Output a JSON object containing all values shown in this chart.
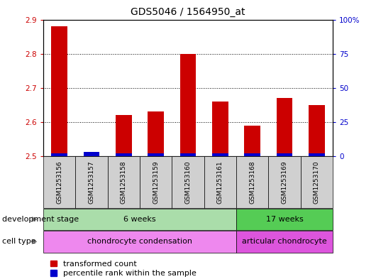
{
  "title": "GDS5046 / 1564950_at",
  "samples": [
    "GSM1253156",
    "GSM1253157",
    "GSM1253158",
    "GSM1253159",
    "GSM1253160",
    "GSM1253161",
    "GSM1253168",
    "GSM1253169",
    "GSM1253170"
  ],
  "transformed_count": [
    2.88,
    2.505,
    2.62,
    2.63,
    2.8,
    2.66,
    2.59,
    2.67,
    2.65
  ],
  "percentile_rank": [
    2,
    3,
    2,
    2,
    2,
    2,
    2,
    2,
    2
  ],
  "ylim_left": [
    2.5,
    2.9
  ],
  "ylim_right": [
    0,
    100
  ],
  "yticks_left": [
    2.5,
    2.6,
    2.7,
    2.8,
    2.9
  ],
  "yticks_right": [
    0,
    25,
    50,
    75,
    100
  ],
  "ytick_labels_right": [
    "0",
    "25",
    "50",
    "75",
    "100%"
  ],
  "bar_color_red": "#cc0000",
  "bar_color_blue": "#0000cc",
  "background_color": "#ffffff",
  "dev_stage_groups": [
    {
      "label": "6 weeks",
      "start": 0,
      "end": 6,
      "color": "#aaddaa"
    },
    {
      "label": "17 weeks",
      "start": 6,
      "end": 9,
      "color": "#55cc55"
    }
  ],
  "cell_type_groups": [
    {
      "label": "chondrocyte condensation",
      "start": 0,
      "end": 6,
      "color": "#ee88ee"
    },
    {
      "label": "articular chondrocyte",
      "start": 6,
      "end": 9,
      "color": "#dd55dd"
    }
  ],
  "dev_stage_label": "development stage",
  "cell_type_label": "cell type",
  "legend_red_label": "transformed count",
  "legend_blue_label": "percentile rank within the sample",
  "left_tick_color": "#cc0000",
  "right_tick_color": "#0000cc",
  "title_fontsize": 10,
  "axis_fontsize": 7.5,
  "label_fontsize": 8,
  "sample_fontsize": 6.5
}
